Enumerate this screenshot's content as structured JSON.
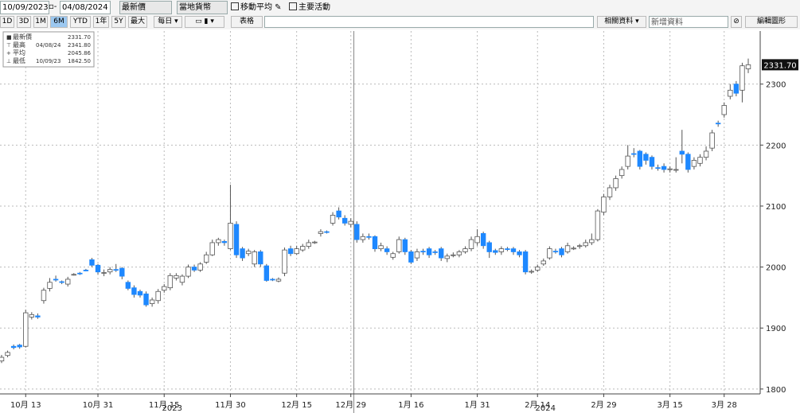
{
  "toolbar": {
    "start_date": "10/09/2023",
    "end_date": "04/08/2024",
    "price_field": "最新價",
    "currency": "當地貨幣",
    "moving_average": "移動平均",
    "key_events": "主要活動",
    "periods": [
      "1D",
      "3D",
      "1M",
      "6M",
      "YTD",
      "1年",
      "5Y",
      "最大"
    ],
    "active_period": "6M",
    "frequency": "每日",
    "table": "表格",
    "related": "相關資料",
    "add_data": "新增資料",
    "edit_chart": "編輯圖形"
  },
  "chart_data": {
    "type": "candlestick",
    "legend": [
      {
        "name": "最新價",
        "value": "2331.70"
      },
      {
        "name": "最高",
        "date": "04/08/24",
        "value": "2341.80"
      },
      {
        "name": "平均",
        "value": "2045.86"
      },
      {
        "name": "最低",
        "date": "10/09/23",
        "value": "1842.50"
      }
    ],
    "last_price_label": "2331.70",
    "year_labels": [
      "2023",
      "2024"
    ],
    "categories": [
      null,
      null,
      null,
      null,
      "10月 13",
      null,
      null,
      null,
      null,
      null,
      null,
      null,
      null,
      null,
      null,
      null,
      "10月 31",
      null,
      null,
      null,
      null,
      null,
      null,
      null,
      null,
      null,
      null,
      "11月 15",
      null,
      null,
      null,
      null,
      null,
      null,
      null,
      null,
      null,
      null,
      "11月 30",
      null,
      null,
      null,
      null,
      null,
      null,
      null,
      null,
      null,
      null,
      "12月 15",
      null,
      null,
      null,
      null,
      null,
      null,
      null,
      null,
      "12月 29",
      null,
      null,
      null,
      null,
      null,
      null,
      null,
      null,
      null,
      "1月 16",
      null,
      null,
      null,
      null,
      null,
      null,
      null,
      null,
      null,
      null,
      "1月 31",
      null,
      null,
      null,
      null,
      null,
      null,
      null,
      null,
      null,
      "2月 14",
      null,
      null,
      null,
      null,
      null,
      null,
      null,
      null,
      null,
      null,
      "2月 29",
      null,
      null,
      null,
      null,
      null,
      null,
      null,
      null,
      null,
      null,
      "3月 15",
      null,
      null,
      null,
      null,
      null,
      null,
      null,
      null,
      "3月 28",
      null,
      null,
      null,
      null
    ],
    "open": [
      1846,
      1855,
      1870,
      1872,
      1870,
      1918,
      1920,
      1945,
      1965,
      1980,
      1976,
      1972,
      1988,
      1990,
      1995,
      2012,
      2003,
      1990,
      1992,
      1996,
      1998,
      1975,
      1966,
      1960,
      1956,
      1940,
      1945,
      1962,
      1966,
      1982,
      1975,
      1985,
      2000,
      1995,
      2008,
      2020,
      2040,
      2042,
      2030,
      2070,
      2030,
      2022,
      2005,
      2025,
      2002,
      1980,
      1977,
      1990,
      2030,
      2022,
      2028,
      2034,
      2040,
      2055,
      2058,
      2072,
      2092,
      2080,
      2070,
      2070,
      2045,
      2050,
      2050,
      2030,
      2030,
      2016,
      2025,
      2045,
      2025,
      2015,
      2026,
      2030,
      2025,
      2030,
      2014,
      2020,
      2020,
      2025,
      2030,
      2040,
      2055,
      2040,
      2027,
      2025,
      2030,
      2030,
      2025,
      2025,
      1992,
      1995,
      2005,
      2015,
      2026,
      2030,
      2025,
      2030,
      2034,
      2035,
      2040,
      2045,
      2090,
      2115,
      2130,
      2150,
      2165,
      2186,
      2190,
      2185,
      2180,
      2163,
      2165,
      2160,
      2160,
      2190,
      2185,
      2165,
      2170,
      2180,
      2195,
      2236,
      2250,
      2280,
      2300,
      2290,
      2325
    ],
    "high": [
      1856,
      1863,
      1873,
      1874,
      1930,
      1926,
      1924,
      1966,
      1982,
      1986,
      1978,
      1984,
      1990,
      1992,
      1997,
      2015,
      2005,
      1996,
      2000,
      2005,
      2000,
      1978,
      1970,
      1963,
      1960,
      1950,
      1964,
      1972,
      1990,
      1990,
      1988,
      2004,
      2004,
      2008,
      2025,
      2045,
      2048,
      2045,
      2135,
      2075,
      2033,
      2030,
      2028,
      2028,
      2005,
      1982,
      1983,
      2032,
      2035,
      2035,
      2038,
      2045,
      2043,
      2062,
      2060,
      2090,
      2098,
      2085,
      2080,
      2075,
      2055,
      2055,
      2052,
      2040,
      2034,
      2025,
      2050,
      2048,
      2028,
      2030,
      2030,
      2033,
      2028,
      2033,
      2022,
      2024,
      2028,
      2034,
      2050,
      2062,
      2058,
      2043,
      2030,
      2034,
      2033,
      2033,
      2028,
      2028,
      1996,
      2004,
      2014,
      2034,
      2030,
      2033,
      2040,
      2034,
      2038,
      2045,
      2055,
      2095,
      2120,
      2135,
      2150,
      2165,
      2200,
      2195,
      2192,
      2188,
      2183,
      2168,
      2170,
      2165,
      2180,
      2225,
      2188,
      2180,
      2185,
      2198,
      2225,
      2240,
      2270,
      2300,
      2305,
      2335,
      2341.8
    ],
    "low": [
      1842.5,
      1852,
      1865,
      1866,
      1868,
      1914,
      1915,
      1940,
      1960,
      1976,
      1972,
      1968,
      1986,
      1987,
      1993,
      2000,
      1988,
      1985,
      1988,
      1992,
      1980,
      1962,
      1950,
      1950,
      1935,
      1935,
      1940,
      1958,
      1962,
      1978,
      1970,
      1982,
      1992,
      1992,
      2005,
      2018,
      2035,
      2035,
      2028,
      2015,
      2010,
      2018,
      2000,
      2000,
      1976,
      1977,
      1975,
      1985,
      2018,
      2020,
      2025,
      2030,
      2038,
      2050,
      2055,
      2068,
      2078,
      2068,
      2065,
      2040,
      2040,
      2045,
      2025,
      2026,
      2020,
      2012,
      2022,
      2020,
      2005,
      2010,
      2020,
      2015,
      2020,
      2010,
      2008,
      2016,
      2016,
      2022,
      2026,
      2035,
      2030,
      2015,
      2020,
      2020,
      2026,
      2020,
      2016,
      1988,
      1989,
      1992,
      2002,
      2012,
      2022,
      2016,
      2022,
      2028,
      2030,
      2032,
      2036,
      2042,
      2085,
      2110,
      2125,
      2145,
      2160,
      2180,
      2160,
      2168,
      2160,
      2158,
      2155,
      2155,
      2155,
      2170,
      2155,
      2160,
      2165,
      2175,
      2190,
      2230,
      2245,
      2275,
      2280,
      2270,
      2318
    ],
    "close": [
      1852,
      1860,
      1868,
      1869,
      1925,
      1922,
      1918,
      1962,
      1975,
      1979,
      1975,
      1980,
      1988,
      1989,
      1994,
      2003,
      1992,
      1991,
      1996,
      1995,
      1985,
      1965,
      1955,
      1954,
      1938,
      1946,
      1960,
      1968,
      1986,
      1986,
      1985,
      2000,
      1995,
      2005,
      2020,
      2040,
      2045,
      2040,
      2072,
      2020,
      2015,
      2026,
      2025,
      2005,
      1978,
      1979,
      1980,
      2028,
      2022,
      2030,
      2034,
      2040,
      2041,
      2058,
      2057,
      2085,
      2082,
      2072,
      2075,
      2045,
      2050,
      2049,
      2030,
      2035,
      2025,
      2022,
      2045,
      2025,
      2008,
      2025,
      2025,
      2020,
      2024,
      2015,
      2018,
      2020,
      2025,
      2030,
      2045,
      2050,
      2035,
      2025,
      2024,
      2030,
      2029,
      2025,
      2020,
      1992,
      1993,
      2000,
      2010,
      2030,
      2025,
      2020,
      2035,
      2031,
      2035,
      2040,
      2045,
      2092,
      2115,
      2130,
      2145,
      2160,
      2182,
      2185,
      2165,
      2175,
      2165,
      2162,
      2160,
      2161,
      2160,
      2185,
      2160,
      2175,
      2180,
      2190,
      2220,
      2235,
      2265,
      2290,
      2285,
      2330,
      2331.7
    ],
    "up_color": "#ffffff",
    "down_color": "#1e88ff",
    "ylim": [
      1792,
      2387
    ],
    "yticks": [
      1800,
      1900,
      2000,
      2100,
      2200,
      2300
    ],
    "grid": true
  }
}
